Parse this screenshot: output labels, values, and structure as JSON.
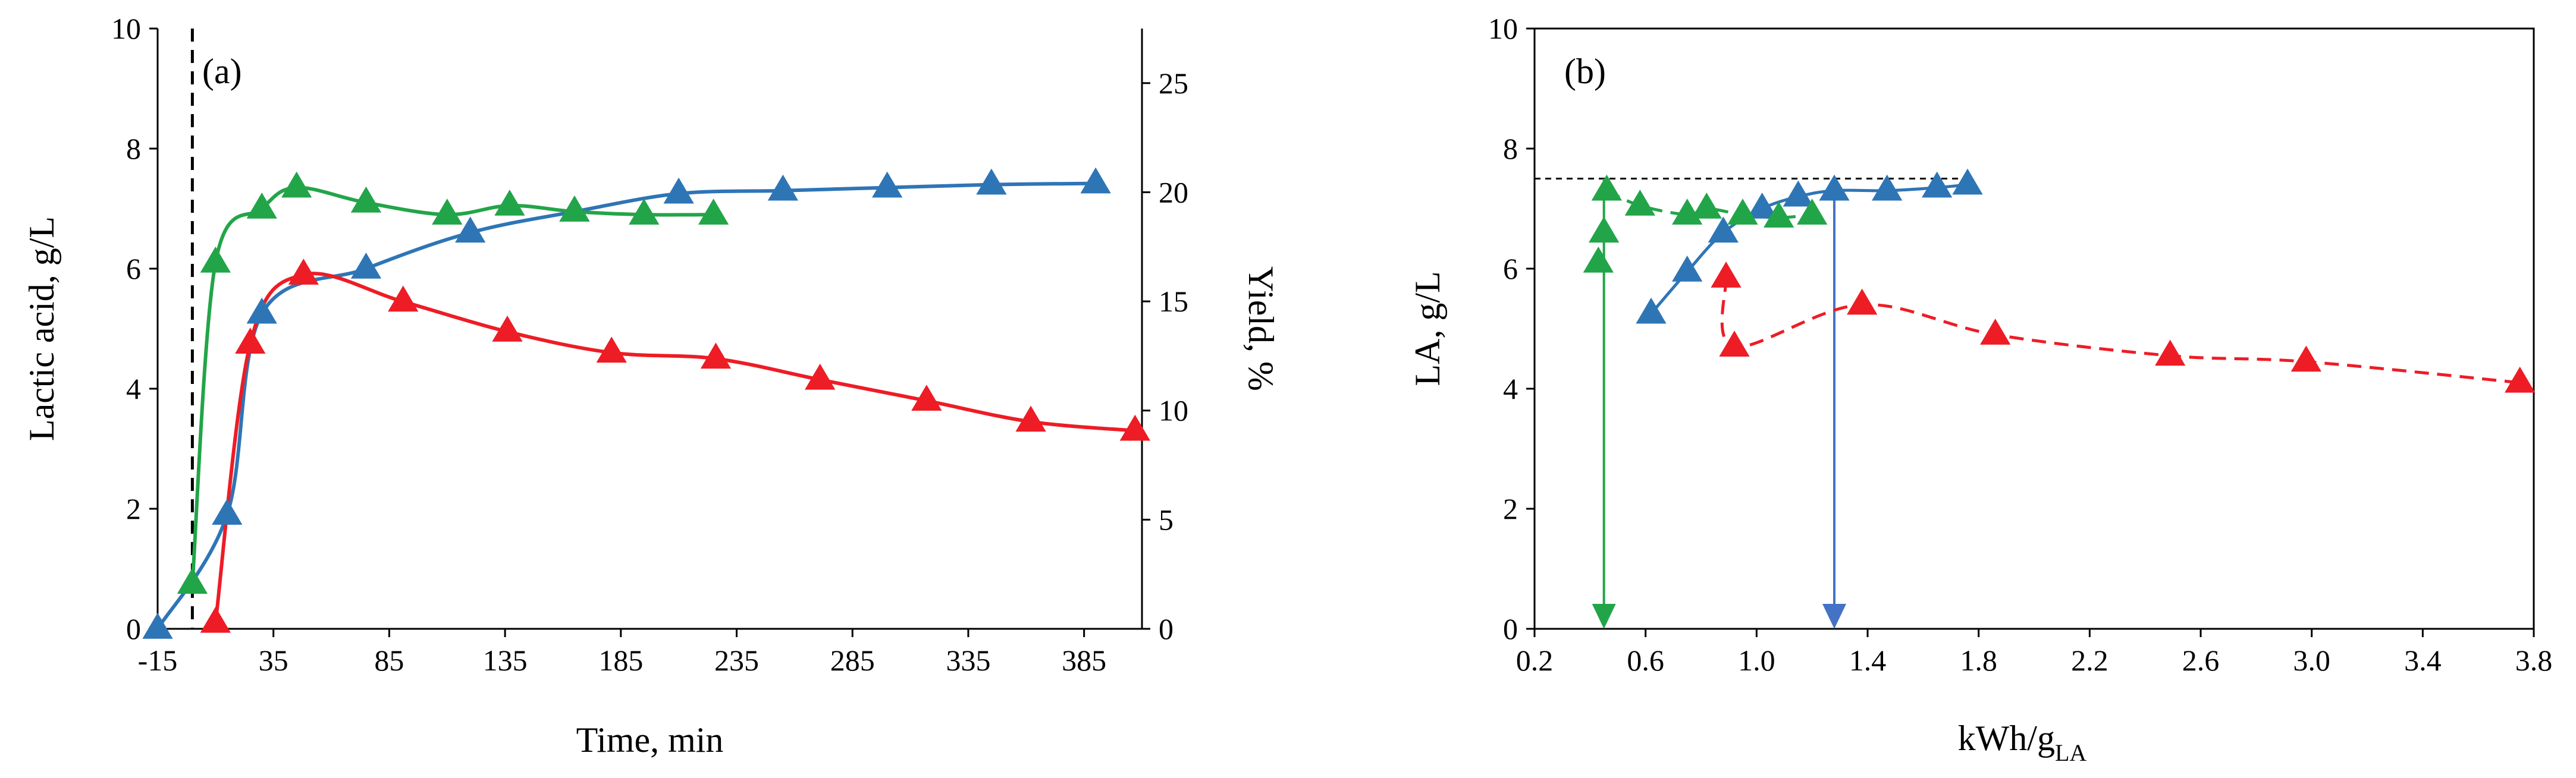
{
  "chart_data": [
    {
      "panel": "(a)",
      "type": "line",
      "xlabel": "Time, min",
      "ylabel": "Lactic acid, g/L",
      "y2label": "Yield, %",
      "xlim": [
        -15,
        410
      ],
      "ylim": [
        0,
        10
      ],
      "y2lim": [
        0,
        27.5
      ],
      "xticks": [
        -15,
        35,
        85,
        135,
        185,
        235,
        285,
        335,
        385
      ],
      "xtick_labels": [
        "-15",
        "35",
        "85",
        "135",
        "185",
        "235",
        "285",
        "335",
        "385"
      ],
      "yticks": [
        0,
        2,
        4,
        6,
        8,
        10
      ],
      "ytick_labels": [
        "0",
        "2",
        "4",
        "6",
        "8",
        "10"
      ],
      "y2ticks": [
        0,
        5,
        10,
        15,
        20,
        25
      ],
      "y2tick_labels": [
        "0",
        "5",
        "10",
        "15",
        "20",
        "25"
      ],
      "vline_x": 0,
      "series": [
        {
          "name": "blue",
          "color": "#2E75B6",
          "style": "solid",
          "x": [
            -15,
            15,
            30,
            75,
            120,
            165,
            210,
            255,
            300,
            345,
            390
          ],
          "y": [
            0,
            1.9,
            5.25,
            6.0,
            6.6,
            6.95,
            7.25,
            7.3,
            7.35,
            7.4,
            7.42
          ]
        },
        {
          "name": "green",
          "color": "#22A548",
          "style": "solid",
          "x": [
            0,
            10,
            30,
            45,
            75,
            110,
            137,
            165,
            195,
            225
          ],
          "y": [
            0.75,
            6.1,
            7.0,
            7.35,
            7.1,
            6.9,
            7.05,
            6.95,
            6.9,
            6.9
          ]
        },
        {
          "name": "red",
          "color": "#EE1C25",
          "style": "solid",
          "x": [
            10,
            25,
            48,
            91,
            136,
            181,
            226,
            271,
            317,
            362,
            407
          ],
          "y": [
            0.1,
            4.75,
            5.9,
            5.45,
            4.95,
            4.6,
            4.5,
            4.15,
            3.8,
            3.45,
            3.3
          ]
        }
      ]
    },
    {
      "panel": "(b)",
      "type": "scatter",
      "xlabel_main": "kWh/g",
      "xlabel_sub": "LA",
      "ylabel": "LA, g/L",
      "xlim": [
        0.2,
        3.8
      ],
      "ylim": [
        0,
        10
      ],
      "xticks": [
        0.2,
        0.6,
        1.0,
        1.4,
        1.8,
        2.2,
        2.6,
        3.0,
        3.4,
        3.8
      ],
      "xtick_labels": [
        "0.2",
        "0.6",
        "1.0",
        "1.4",
        "1.8",
        "2.2",
        "2.6",
        "3.0",
        "3.4",
        "3.8"
      ],
      "yticks": [
        0,
        2,
        4,
        6,
        8,
        10
      ],
      "ytick_labels": [
        "0",
        "2",
        "4",
        "6",
        "8",
        "10"
      ],
      "hline_y": 7.5,
      "arrows": [
        {
          "color": "#22A548",
          "x": 0.45,
          "from_y": 7.5,
          "to_y": 0
        },
        {
          "color": "#4472C4",
          "x": 1.28,
          "from_y": 7.5,
          "to_y": 0
        }
      ],
      "series": [
        {
          "name": "blue",
          "color": "#2E75B6",
          "line_style": "solid",
          "x": [
            0.62,
            0.75,
            0.88,
            1.02,
            1.15,
            1.28,
            1.47,
            1.65,
            1.76
          ],
          "y": [
            5.25,
            5.95,
            6.6,
            7.0,
            7.2,
            7.3,
            7.3,
            7.35,
            7.4
          ]
        },
        {
          "name": "green",
          "color": "#22A548",
          "line_style": "dash",
          "x": [
            0.43,
            0.45,
            0.46,
            0.58,
            0.75,
            0.82,
            0.95,
            1.08,
            1.2
          ],
          "y": [
            6.1,
            6.6,
            7.3,
            7.05,
            6.9,
            7.0,
            6.9,
            6.85,
            6.9
          ]
        },
        {
          "name": "red",
          "color": "#EE1C25",
          "line_style": "dash",
          "x": [
            0.89,
            0.92,
            1.38,
            1.86,
            2.49,
            2.98,
            3.75
          ],
          "y": [
            5.85,
            4.7,
            5.4,
            4.9,
            4.55,
            4.45,
            4.1
          ]
        }
      ]
    }
  ]
}
